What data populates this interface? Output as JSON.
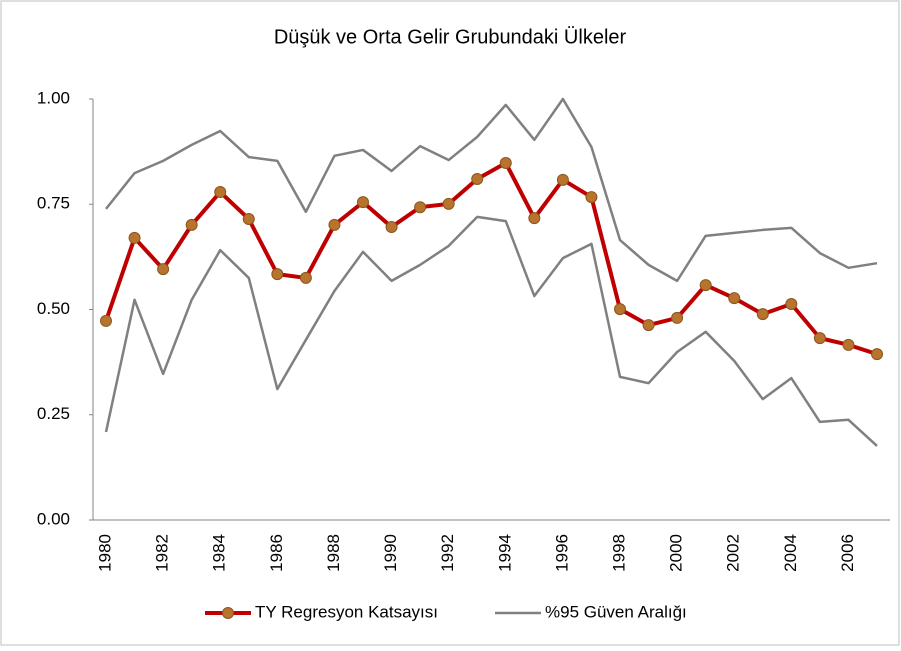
{
  "chart_data": {
    "type": "line",
    "title": "Düşük ve Orta Gelir Grubundaki Ülkeler",
    "categories": [
      "1980",
      null,
      "1982",
      null,
      "1984",
      null,
      "1986",
      null,
      "1988",
      null,
      "1990",
      null,
      "1992",
      null,
      "1994",
      null,
      "1996",
      null,
      "1998",
      null,
      "2000",
      null,
      "2002",
      null,
      "2004",
      null,
      "2006",
      null
    ],
    "series": [
      {
        "name": "TY Regresyon Katsayısı",
        "color": "#c00000",
        "marker_color": "#b8732c",
        "values": [
          0.473,
          0.67,
          0.596,
          0.701,
          0.779,
          0.715,
          0.584,
          0.575,
          0.701,
          0.755,
          0.696,
          0.743,
          0.751,
          0.81,
          0.848,
          0.717,
          0.808,
          0.767,
          0.501,
          0.463,
          0.48,
          0.558,
          0.527,
          0.489,
          0.513,
          0.432,
          0.416,
          0.394
        ]
      },
      {
        "name": "%95 Güven Aralığı",
        "color": "#808080",
        "values": [
          0.739,
          0.824,
          0.853,
          0.891,
          0.924,
          0.862,
          0.853,
          0.732,
          0.865,
          0.879,
          0.829,
          0.888,
          0.855,
          0.91,
          0.986,
          0.903,
          1.0,
          0.886,
          0.665,
          0.606,
          0.568,
          0.675,
          0.682,
          0.689,
          0.694,
          0.634,
          0.599,
          0.61
        ]
      },
      {
        "color": "#808080",
        "values": [
          0.209,
          0.523,
          0.347,
          0.523,
          0.641,
          0.575,
          0.311,
          0.428,
          0.544,
          0.637,
          0.568,
          0.606,
          0.651,
          0.72,
          0.71,
          0.532,
          0.622,
          0.656,
          0.34,
          0.325,
          0.399,
          0.447,
          0.378,
          0.287,
          0.337,
          0.233,
          0.238,
          0.176
        ]
      }
    ],
    "ylim": [
      0,
      1
    ],
    "yticks": [
      {
        "value": 0,
        "label": "0.00"
      },
      {
        "value": 0.25,
        "label": "0.25"
      },
      {
        "value": 0.5,
        "label": "0.50"
      },
      {
        "value": 0.75,
        "label": "0.75"
      },
      {
        "value": 1,
        "label": "1.00"
      }
    ],
    "legend": "bottom"
  }
}
